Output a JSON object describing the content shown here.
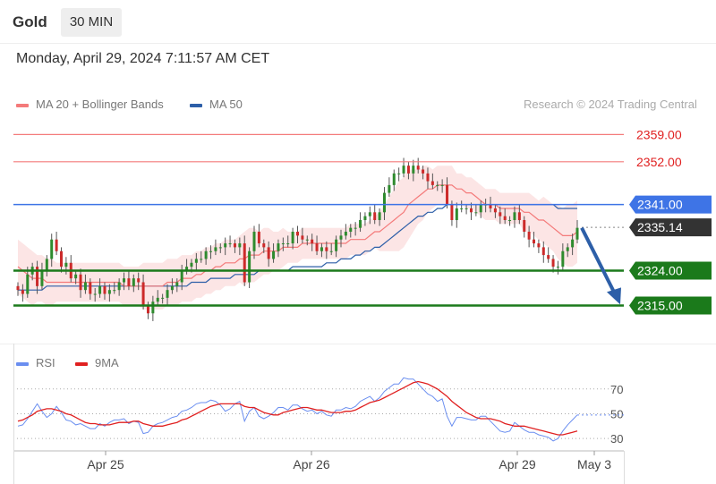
{
  "header": {
    "title": "Gold",
    "timeframe": "30 MIN"
  },
  "timestamp": "Monday, April 29, 2024 7:11:57 AM CET",
  "legend": {
    "ma20": "MA 20 + Bollinger Bands",
    "ma50": "MA 50"
  },
  "attribution": "Research © 2024 Trading Central",
  "rsi_legend": {
    "rsi": "RSI",
    "ma9": "9MA"
  },
  "colors": {
    "support": "#1b7a1b",
    "resistance": "#f47a7a",
    "ma50": "#2d5fa8",
    "pivot": "#3e74e6",
    "last": "#333333",
    "bollinger": "#fbe0e0",
    "rsi": "#6a8ef0",
    "rsi_ma": "#e02020",
    "bull": "#2e8b2e",
    "bear": "#cc2a2a",
    "arrow": "#2d5fa8"
  },
  "chart_data": [
    {
      "type": "candlestick",
      "title": "Gold",
      "ylim": [
        2305,
        2366
      ],
      "x_labels": [
        "Apr 25",
        "Apr 26",
        "Apr 29",
        "May 3"
      ],
      "levels": [
        {
          "value": 2359.0,
          "label": "2359.00",
          "kind": "resistance"
        },
        {
          "value": 2352.0,
          "label": "2352.00",
          "kind": "resistance"
        },
        {
          "value": 2341.0,
          "label": "2341.00",
          "kind": "pivot"
        },
        {
          "value": 2335.14,
          "label": "2335.14",
          "kind": "last"
        },
        {
          "value": 2324.0,
          "label": "2324.00",
          "kind": "support"
        },
        {
          "value": 2315.0,
          "label": "2315.00",
          "kind": "support"
        }
      ],
      "close": [
        2319,
        2318,
        2323,
        2325,
        2320,
        2324,
        2327,
        2332,
        2329,
        2325,
        2326,
        2322,
        2323,
        2319,
        2321,
        2318,
        2318,
        2320,
        2318,
        2319,
        2319,
        2321,
        2322,
        2320,
        2322,
        2321,
        2315,
        2313,
        2316,
        2317,
        2317,
        2319,
        2320,
        2321,
        2324,
        2325,
        2326,
        2327,
        2327,
        2329,
        2329,
        2330,
        2330,
        2331,
        2331,
        2330,
        2331,
        2321,
        2329,
        2334,
        2331,
        2330,
        2327,
        2329,
        2331,
        2331,
        2331,
        2334,
        2333,
        2332,
        2332,
        2331,
        2329,
        2330,
        2329,
        2329,
        2332,
        2333,
        2334,
        2335,
        2335,
        2337,
        2338,
        2339,
        2337,
        2339,
        2344,
        2346,
        2349,
        2349,
        2351,
        2349,
        2351,
        2350,
        2349,
        2347,
        2346,
        2346,
        2346,
        2341,
        2337,
        2340,
        2340,
        2340,
        2339,
        2339,
        2341,
        2341,
        2340,
        2339,
        2338,
        2337,
        2337,
        2339,
        2337,
        2334,
        2332,
        2331,
        2330,
        2328,
        2327,
        2325,
        2325,
        2329,
        2330,
        2332,
        2335
      ],
      "ma20": [
        2325,
        2324,
        2323,
        2322,
        2322,
        2322,
        2321,
        2321,
        2321,
        2321,
        2321,
        2321,
        2321,
        2321,
        2321,
        2321,
        2321,
        2321,
        2321,
        2321,
        2321,
        2321,
        2320,
        2320,
        2320,
        2320,
        2320,
        2320,
        2320,
        2320,
        2320,
        2321,
        2321,
        2321,
        2322,
        2322,
        2322,
        2323,
        2323,
        2324,
        2324,
        2325,
        2325,
        2326,
        2326,
        2326,
        2327,
        2327,
        2328,
        2328,
        2328,
        2329,
        2329,
        2329,
        2329,
        2330,
        2330,
        2330,
        2330,
        2331,
        2331,
        2331,
        2331,
        2331,
        2331,
        2331,
        2331,
        2331,
        2331,
        2332,
        2332,
        2332,
        2332,
        2333,
        2334,
        2334,
        2335,
        2336,
        2337,
        2338,
        2339,
        2341,
        2342,
        2343,
        2344,
        2345,
        2345,
        2346,
        2346,
        2346,
        2346,
        2345,
        2345,
        2344,
        2344,
        2343,
        2342,
        2341,
        2341,
        2341,
        2340,
        2340,
        2340,
        2340,
        2340,
        2339,
        2339,
        2338,
        2337,
        2337,
        2336,
        2335,
        2334,
        2333,
        2333,
        2333,
        2334
      ],
      "bb_width": [
        7,
        7,
        7,
        7,
        6,
        6,
        6,
        6,
        5,
        5,
        5,
        5,
        5,
        5,
        5,
        5,
        5,
        5,
        5,
        5,
        5,
        5,
        5,
        5,
        5,
        5,
        6,
        6,
        6,
        6,
        6,
        6,
        6,
        6,
        6,
        6,
        6,
        6,
        6,
        6,
        6,
        6,
        6,
        6,
        6,
        6,
        6,
        7,
        7,
        7,
        6,
        6,
        6,
        5,
        5,
        5,
        4,
        4,
        4,
        4,
        4,
        4,
        4,
        4,
        4,
        4,
        4,
        4,
        4,
        4,
        4,
        4,
        4,
        4,
        4,
        5,
        6,
        7,
        8,
        9,
        9,
        9,
        8,
        7,
        7,
        6,
        5,
        5,
        5,
        5,
        5,
        4,
        4,
        4,
        4,
        4,
        4,
        4,
        4,
        4,
        4,
        4,
        4,
        4,
        4,
        5,
        5,
        5,
        5,
        6,
        6,
        6,
        7,
        7,
        8,
        8,
        8
      ],
      "ma50": [
        2319,
        2319,
        2319,
        2319,
        2319,
        2319,
        2320,
        2320,
        2320,
        2320,
        2320,
        2320,
        2320,
        2320,
        2320,
        2320,
        2320,
        2320,
        2320,
        2320,
        2320,
        2320,
        2320,
        2320,
        2320,
        2320,
        2320,
        2320,
        2320,
        2320,
        2320,
        2320,
        2320,
        2320,
        2320,
        2320,
        2321,
        2321,
        2321,
        2321,
        2322,
        2322,
        2322,
        2322,
        2322,
        2323,
        2323,
        2323,
        2323,
        2323,
        2324,
        2324,
        2324,
        2324,
        2324,
        2324,
        2324,
        2325,
        2325,
        2325,
        2325,
        2325,
        2325,
        2325,
        2326,
        2326,
        2326,
        2327,
        2327,
        2327,
        2328,
        2328,
        2329,
        2329,
        2330,
        2330,
        2331,
        2332,
        2333,
        2334,
        2335,
        2336,
        2337,
        2338,
        2338,
        2339,
        2339,
        2340,
        2340,
        2341,
        2341,
        2341,
        2341,
        2341,
        2341,
        2341,
        2341,
        2341,
        2341,
        2341,
        2341,
        2341,
        2341,
        2341,
        2341,
        2341,
        2341,
        2341,
        2341,
        2341,
        2341,
        2341,
        2340,
        2340,
        2340,
        2340,
        2340
      ]
    },
    {
      "type": "line",
      "title": "RSI",
      "ylim": [
        20,
        85
      ],
      "y_ticks": [
        "70",
        "50",
        "30"
      ],
      "series": [
        {
          "name": "RSI",
          "values": [
            40,
            41,
            46,
            52,
            58,
            52,
            47,
            50,
            56,
            51,
            45,
            44,
            41,
            42,
            40,
            38,
            38,
            42,
            40,
            43,
            45,
            45,
            46,
            42,
            44,
            43,
            34,
            35,
            40,
            42,
            43,
            45,
            47,
            48,
            52,
            53,
            55,
            58,
            59,
            59,
            61,
            60,
            57,
            52,
            54,
            58,
            60,
            44,
            52,
            55,
            48,
            46,
            48,
            51,
            55,
            55,
            53,
            57,
            57,
            54,
            52,
            53,
            50,
            52,
            49,
            48,
            53,
            53,
            55,
            54,
            56,
            60,
            62,
            64,
            60,
            63,
            68,
            71,
            74,
            74,
            79,
            78,
            78,
            74,
            70,
            66,
            64,
            60,
            62,
            48,
            40,
            47,
            47,
            46,
            45,
            45,
            48,
            48,
            44,
            40,
            36,
            35,
            36,
            43,
            40,
            37,
            35,
            35,
            33,
            32,
            31,
            28,
            30,
            36,
            41,
            45,
            49
          ]
        },
        {
          "name": "9MA",
          "values": [
            44,
            45,
            47,
            49,
            52,
            53,
            54,
            54,
            53,
            52,
            50,
            49,
            47,
            45,
            43,
            42,
            42,
            41,
            41,
            41,
            42,
            43,
            43,
            43,
            44,
            44,
            42,
            41,
            40,
            40,
            40,
            41,
            42,
            43,
            45,
            46,
            48,
            50,
            52,
            54,
            56,
            57,
            58,
            58,
            58,
            58,
            58,
            56,
            55,
            55,
            53,
            51,
            50,
            49,
            49,
            51,
            52,
            53,
            54,
            55,
            55,
            54,
            53,
            53,
            52,
            51,
            51,
            51,
            52,
            52,
            53,
            55,
            57,
            59,
            60,
            61,
            63,
            65,
            67,
            69,
            71,
            73,
            75,
            76,
            75,
            74,
            72,
            70,
            67,
            64,
            60,
            57,
            54,
            51,
            49,
            47,
            46,
            46,
            46,
            45,
            44,
            42,
            41,
            40,
            40,
            40,
            39,
            38,
            37,
            36,
            35,
            34,
            33,
            33,
            34,
            35,
            36
          ]
        }
      ]
    }
  ]
}
